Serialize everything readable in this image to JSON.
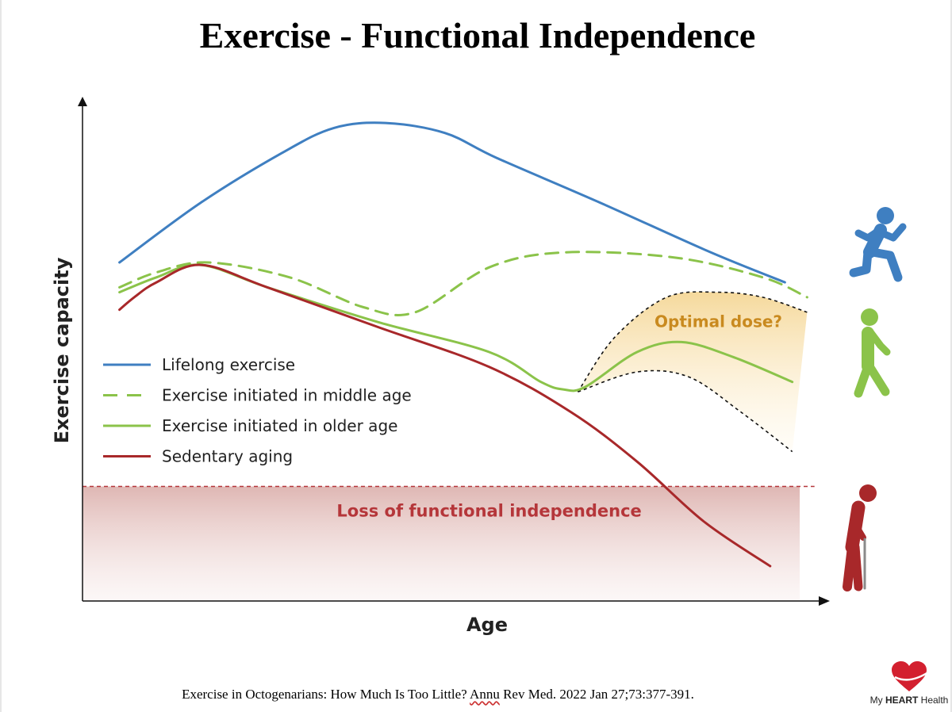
{
  "slide": {
    "title": "Exercise - Functional Independence",
    "citation_before": "Exercise in Octogenarians: How Much Is Too Little? ",
    "citation_flagged": "Annu",
    "citation_after": " Rev Med. 2022 Jan 27;73:377-391.",
    "logo": {
      "prefix": "My ",
      "bold": "HEART",
      "suffix": " Health",
      "color": "#d3202f"
    }
  },
  "chart_data": {
    "type": "line",
    "title": "",
    "xlabel": "Age",
    "ylabel": "Exercise capacity",
    "xlim": [
      0,
      100
    ],
    "ylim": [
      0,
      100
    ],
    "grid": false,
    "legend": "middle-left",
    "series": [
      {
        "name": "Lifelong exercise",
        "color": "#3f7fc1",
        "style": "solid",
        "points": [
          [
            5,
            68
          ],
          [
            16,
            80
          ],
          [
            27,
            90
          ],
          [
            34,
            95
          ],
          [
            41,
            96
          ],
          [
            49,
            94
          ],
          [
            56,
            89
          ],
          [
            70,
            80
          ],
          [
            85,
            70
          ],
          [
            95,
            64
          ]
        ]
      },
      {
        "name": "Exercise initiated in middle age",
        "color": "#8bc34a",
        "style": "dashed",
        "points": [
          [
            5,
            63
          ],
          [
            10,
            66
          ],
          [
            17,
            68
          ],
          [
            28,
            65
          ],
          [
            38,
            59
          ],
          [
            45,
            58
          ],
          [
            55,
            67
          ],
          [
            65,
            70
          ],
          [
            80,
            69
          ],
          [
            92,
            65
          ],
          [
            98,
            61
          ]
        ]
      },
      {
        "name": "Exercise initiated in older age",
        "color": "#8bc34a",
        "style": "solid",
        "points": [
          [
            5,
            62
          ],
          [
            10,
            65
          ],
          [
            16,
            67.5
          ],
          [
            25,
            63
          ],
          [
            40,
            56
          ],
          [
            55,
            50
          ],
          [
            62,
            44
          ],
          [
            65,
            42.5
          ],
          [
            68,
            43
          ],
          [
            75,
            50
          ],
          [
            81,
            52
          ],
          [
            88,
            49
          ],
          [
            96,
            44
          ]
        ]
      },
      {
        "name": "Sedentary aging",
        "color": "#a8282a",
        "style": "solid",
        "points": [
          [
            5,
            58.5
          ],
          [
            7,
            61
          ],
          [
            10,
            64
          ],
          [
            16,
            67.5
          ],
          [
            25,
            63
          ],
          [
            40,
            55
          ],
          [
            55,
            47
          ],
          [
            66,
            38
          ],
          [
            75,
            28
          ],
          [
            84,
            16
          ],
          [
            93,
            7
          ]
        ]
      }
    ],
    "bands": [
      {
        "label": "Optimal dose?",
        "color": "#c98a1f",
        "upper": [
          [
            67,
            42
          ],
          [
            72,
            53
          ],
          [
            79,
            61
          ],
          [
            86,
            62
          ],
          [
            92,
            61
          ],
          [
            98,
            58
          ]
        ],
        "lower": [
          [
            67,
            42
          ],
          [
            75,
            46
          ],
          [
            82,
            45
          ],
          [
            89,
            38
          ],
          [
            96,
            30
          ]
        ]
      }
    ],
    "threshold": {
      "label": "Loss of functional independence",
      "y": 23,
      "color": "#b5363a"
    },
    "icons": [
      "running-person-icon",
      "walking-person-icon",
      "elderly-person-with-cane-icon"
    ],
    "icon_colors": [
      "#3f7fc1",
      "#8bc34a",
      "#a8282a"
    ]
  }
}
